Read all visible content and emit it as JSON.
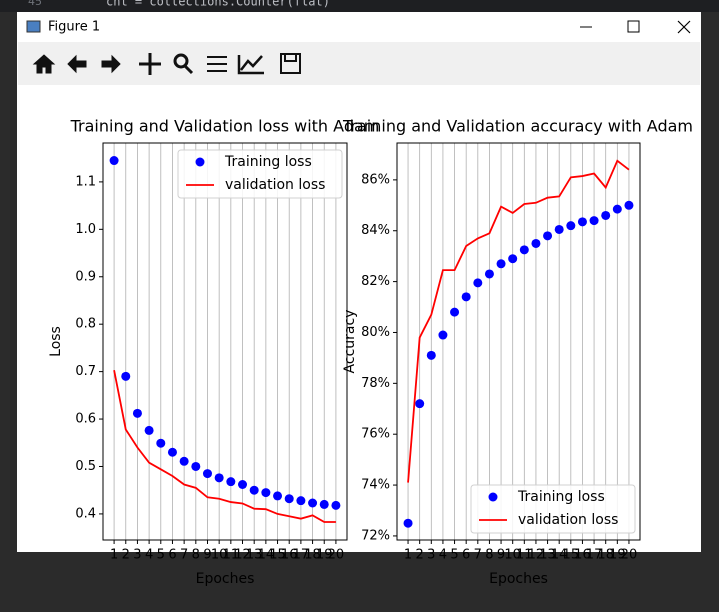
{
  "editor": {
    "line_number": "45",
    "code": "cnt = collections.Counter(flat)"
  },
  "window": {
    "title": "Figure 1"
  },
  "chart_data": [
    {
      "type": "scatter-line",
      "title": "Training and Validation loss with Adam",
      "x_label": "Epoches",
      "y_label": "Loss",
      "x": [
        1,
        2,
        3,
        4,
        5,
        6,
        7,
        8,
        9,
        10,
        11,
        12,
        13,
        14,
        15,
        16,
        17,
        18,
        19,
        20
      ],
      "series": [
        {
          "name": "Training loss",
          "color": "#0000ff",
          "marker": "o",
          "values": [
            1.145,
            0.69,
            0.612,
            0.576,
            0.549,
            0.53,
            0.511,
            0.5,
            0.485,
            0.476,
            0.468,
            0.462,
            0.45,
            0.445,
            0.438,
            0.432,
            0.428,
            0.423,
            0.42,
            0.418
          ]
        },
        {
          "name": "validation loss",
          "color": "#ff0000",
          "linestyle": "-",
          "values": [
            0.703,
            0.578,
            0.54,
            0.508,
            0.494,
            0.48,
            0.462,
            0.455,
            0.435,
            0.432,
            0.425,
            0.422,
            0.411,
            0.41,
            0.4,
            0.395,
            0.39,
            0.397,
            0.383,
            0.383
          ]
        }
      ],
      "xlim": [
        0.05,
        20.95
      ],
      "xticks": [
        1,
        2,
        3,
        4,
        5,
        6,
        7,
        8,
        9,
        10,
        11,
        12,
        13,
        14,
        15,
        16,
        17,
        18,
        19,
        20
      ],
      "ylim": [
        0.345,
        1.182
      ],
      "yticks": [
        0.4,
        0.5,
        0.6,
        0.7,
        0.8,
        0.9,
        {
          "value": 1,
          "label": "1.0"
        },
        1.1
      ],
      "grid": "x",
      "legend": "upper right"
    },
    {
      "type": "scatter-line",
      "title": "Training and Validation accuracy with Adam",
      "x_label": "Epoches",
      "y_label": "Accuracy",
      "x": [
        1,
        2,
        3,
        4,
        5,
        6,
        7,
        8,
        9,
        10,
        11,
        12,
        13,
        14,
        15,
        16,
        17,
        18,
        19,
        20
      ],
      "series": [
        {
          "name": "Training loss",
          "color": "#0000ff",
          "marker": "o",
          "values": [
            72.5,
            77.2,
            79.1,
            79.9,
            80.8,
            81.4,
            81.95,
            82.3,
            82.7,
            82.9,
            83.25,
            83.5,
            83.8,
            84.05,
            84.2,
            84.35,
            84.4,
            84.6,
            84.85,
            85.0
          ]
        },
        {
          "name": "validation loss",
          "color": "#ff0000",
          "linestyle": "-",
          "values": [
            74.1,
            79.8,
            80.7,
            82.45,
            82.45,
            83.4,
            83.7,
            83.9,
            84.95,
            84.7,
            85.05,
            85.1,
            85.3,
            85.35,
            86.1,
            86.15,
            86.25,
            85.7,
            86.75,
            86.4
          ]
        }
      ],
      "xlim": [
        0.05,
        20.95
      ],
      "xticks": [
        1,
        2,
        3,
        4,
        5,
        6,
        7,
        8,
        9,
        10,
        11,
        12,
        13,
        14,
        15,
        16,
        17,
        18,
        19,
        20
      ],
      "ylim": [
        71.84,
        87.45
      ],
      "yticks": [
        {
          "value": 72,
          "label": "72%"
        },
        {
          "value": 74,
          "label": "74%"
        },
        {
          "value": 76,
          "label": "76%"
        },
        {
          "value": 78,
          "label": "78%"
        },
        {
          "value": 80,
          "label": "80%"
        },
        {
          "value": 82,
          "label": "82%"
        },
        {
          "value": 84,
          "label": "84%"
        },
        {
          "value": 86,
          "label": "86%"
        }
      ],
      "grid": "x",
      "legend": "lower right"
    }
  ]
}
